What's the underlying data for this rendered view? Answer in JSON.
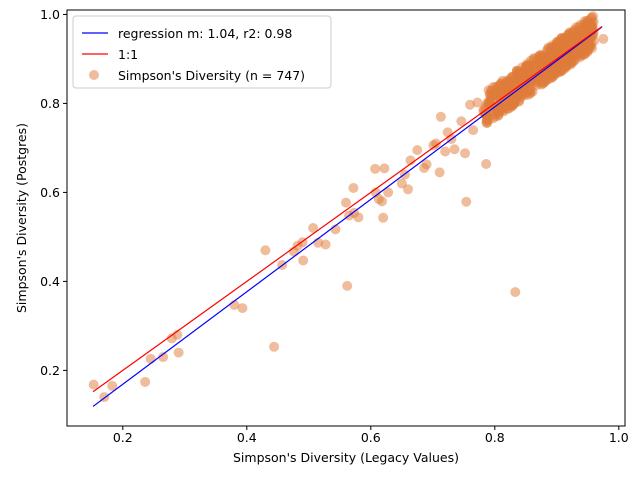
{
  "chart_data": {
    "type": "scatter",
    "xlabel": "Simpson's Diversity (Legacy Values)",
    "ylabel": "Simpson's Diversity (Postgres)",
    "xlim": [
      0.11,
      1.01
    ],
    "ylim": [
      0.075,
      1.01
    ],
    "xticks": [
      0.2,
      0.4,
      0.6,
      0.8,
      1.0
    ],
    "xtick_labels": [
      "0.2",
      "0.4",
      "0.6",
      "0.8",
      "1.0"
    ],
    "yticks": [
      0.2,
      0.4,
      0.6,
      0.8,
      1.0
    ],
    "ytick_labels": [
      "0.2",
      "0.4",
      "0.6",
      "0.8",
      "1.0"
    ],
    "grid": false,
    "legend_position": "top-left",
    "regression": {
      "name": "regression m: 1.04, r2: 0.98",
      "color": "#0000ff",
      "x": [
        0.152,
        0.973
      ],
      "y": [
        0.119,
        0.972
      ]
    },
    "identity": {
      "name": "1:1",
      "color": "#ff0000",
      "x": [
        0.152,
        0.973
      ],
      "y": [
        0.152,
        0.973
      ]
    },
    "scatter": {
      "name": "Simpson's Diversity (n = 747)",
      "color": "#e07b39",
      "x": [
        0.153,
        0.17,
        0.183,
        0.236,
        0.245,
        0.265,
        0.279,
        0.288,
        0.29,
        0.38,
        0.393,
        0.43,
        0.444,
        0.457,
        0.476,
        0.482,
        0.49,
        0.491,
        0.507,
        0.515,
        0.527,
        0.543,
        0.56,
        0.562,
        0.565,
        0.572,
        0.573,
        0.58,
        0.607,
        0.608,
        0.613,
        0.618,
        0.62,
        0.622,
        0.628,
        0.65,
        0.655,
        0.66,
        0.664,
        0.675,
        0.686,
        0.69,
        0.701,
        0.705,
        0.711,
        0.713,
        0.72,
        0.724,
        0.73,
        0.735,
        0.746,
        0.752,
        0.754,
        0.76,
        0.765,
        0.772,
        0.786,
        0.79,
        0.803,
        0.811,
        0.833,
        0.842,
        0.855,
        0.868,
        0.875,
        0.892,
        0.9,
        0.908,
        0.922,
        0.935,
        0.948,
        0.96,
        0.975
      ],
      "y": [
        0.168,
        0.14,
        0.165,
        0.174,
        0.226,
        0.23,
        0.272,
        0.28,
        0.24,
        0.347,
        0.34,
        0.47,
        0.253,
        0.437,
        0.467,
        0.48,
        0.488,
        0.447,
        0.52,
        0.487,
        0.483,
        0.517,
        0.577,
        0.39,
        0.548,
        0.61,
        0.554,
        0.544,
        0.653,
        0.6,
        0.585,
        0.58,
        0.543,
        0.654,
        0.6,
        0.62,
        0.64,
        0.607,
        0.672,
        0.695,
        0.655,
        0.663,
        0.706,
        0.71,
        0.645,
        0.77,
        0.692,
        0.735,
        0.72,
        0.697,
        0.76,
        0.688,
        0.579,
        0.797,
        0.74,
        0.802,
        0.664,
        0.83,
        0.792,
        0.846,
        0.376,
        0.82,
        0.85,
        0.862,
        0.88,
        0.87,
        0.89,
        0.9,
        0.91,
        0.92,
        0.93,
        0.94,
        0.945
      ],
      "dense_cloud": {
        "x_range": [
          0.78,
          0.96
        ],
        "y_offset_range": [
          -0.035,
          0.04
        ],
        "approx_points": 650
      }
    }
  }
}
